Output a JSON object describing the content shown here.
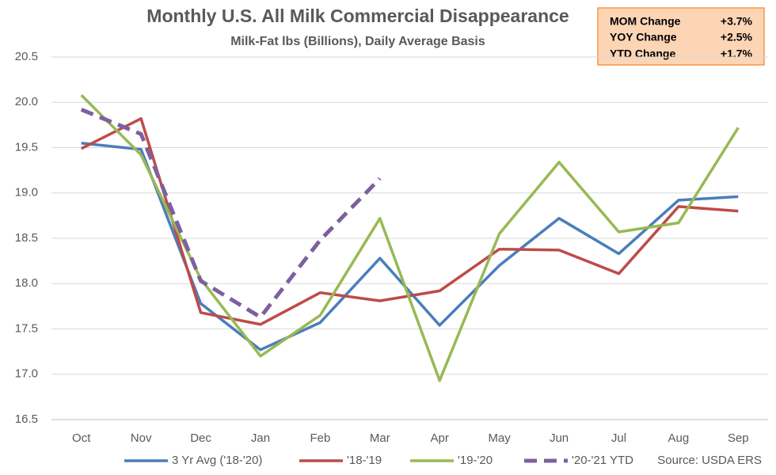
{
  "chart_data": {
    "type": "line",
    "title": "Monthly U.S. All Milk Commercial Disappearance",
    "subtitle": "Milk-Fat lbs (Billions), Daily Average Basis",
    "categories": [
      "Oct",
      "Nov",
      "Dec",
      "Jan",
      "Feb",
      "Mar",
      "Apr",
      "May",
      "Jun",
      "Jul",
      "Aug",
      "Sep"
    ],
    "series": [
      {
        "name": "3 Yr Avg ('18-'20)",
        "color": "#4a7ebb",
        "values": [
          19.55,
          19.48,
          17.78,
          17.27,
          17.57,
          18.28,
          17.54,
          18.2,
          18.72,
          18.33,
          18.92,
          18.96
        ]
      },
      {
        "name": "'18-'19",
        "color": "#be4b48",
        "values": [
          19.49,
          19.82,
          17.68,
          17.55,
          17.9,
          17.81,
          17.92,
          18.38,
          18.37,
          18.11,
          18.85,
          18.8
        ]
      },
      {
        "name": "'19-'20",
        "color": "#98b954",
        "values": [
          20.08,
          19.42,
          18.05,
          17.2,
          17.65,
          18.72,
          16.93,
          18.55,
          19.34,
          18.57,
          18.67,
          19.72
        ]
      },
      {
        "name": "'20-'21 YTD",
        "color": "#7d60a0",
        "line_style": "dashed",
        "values": [
          19.92,
          19.65,
          18.03,
          17.63,
          18.48,
          19.16,
          null,
          null,
          null,
          null,
          null,
          null
        ]
      }
    ],
    "ylim": [
      16.5,
      20.5
    ],
    "yticks": [
      16.5,
      {
        "value": 17,
        "label": "17.0"
      },
      17.5,
      {
        "value": 18,
        "label": "18.0"
      },
      18.5,
      {
        "value": 19,
        "label": "19.0"
      },
      19.5,
      {
        "value": 20,
        "label": "20.0"
      },
      20.5
    ],
    "grid": true,
    "legend": "bottom",
    "source": "Source: USDA ERS",
    "summary_box": {
      "rows": [
        [
          "MOM Change",
          "+3.7%"
        ],
        [
          "YOY Change",
          "+2.5%"
        ],
        [
          "YTD Change",
          "+1.7%"
        ]
      ]
    }
  }
}
